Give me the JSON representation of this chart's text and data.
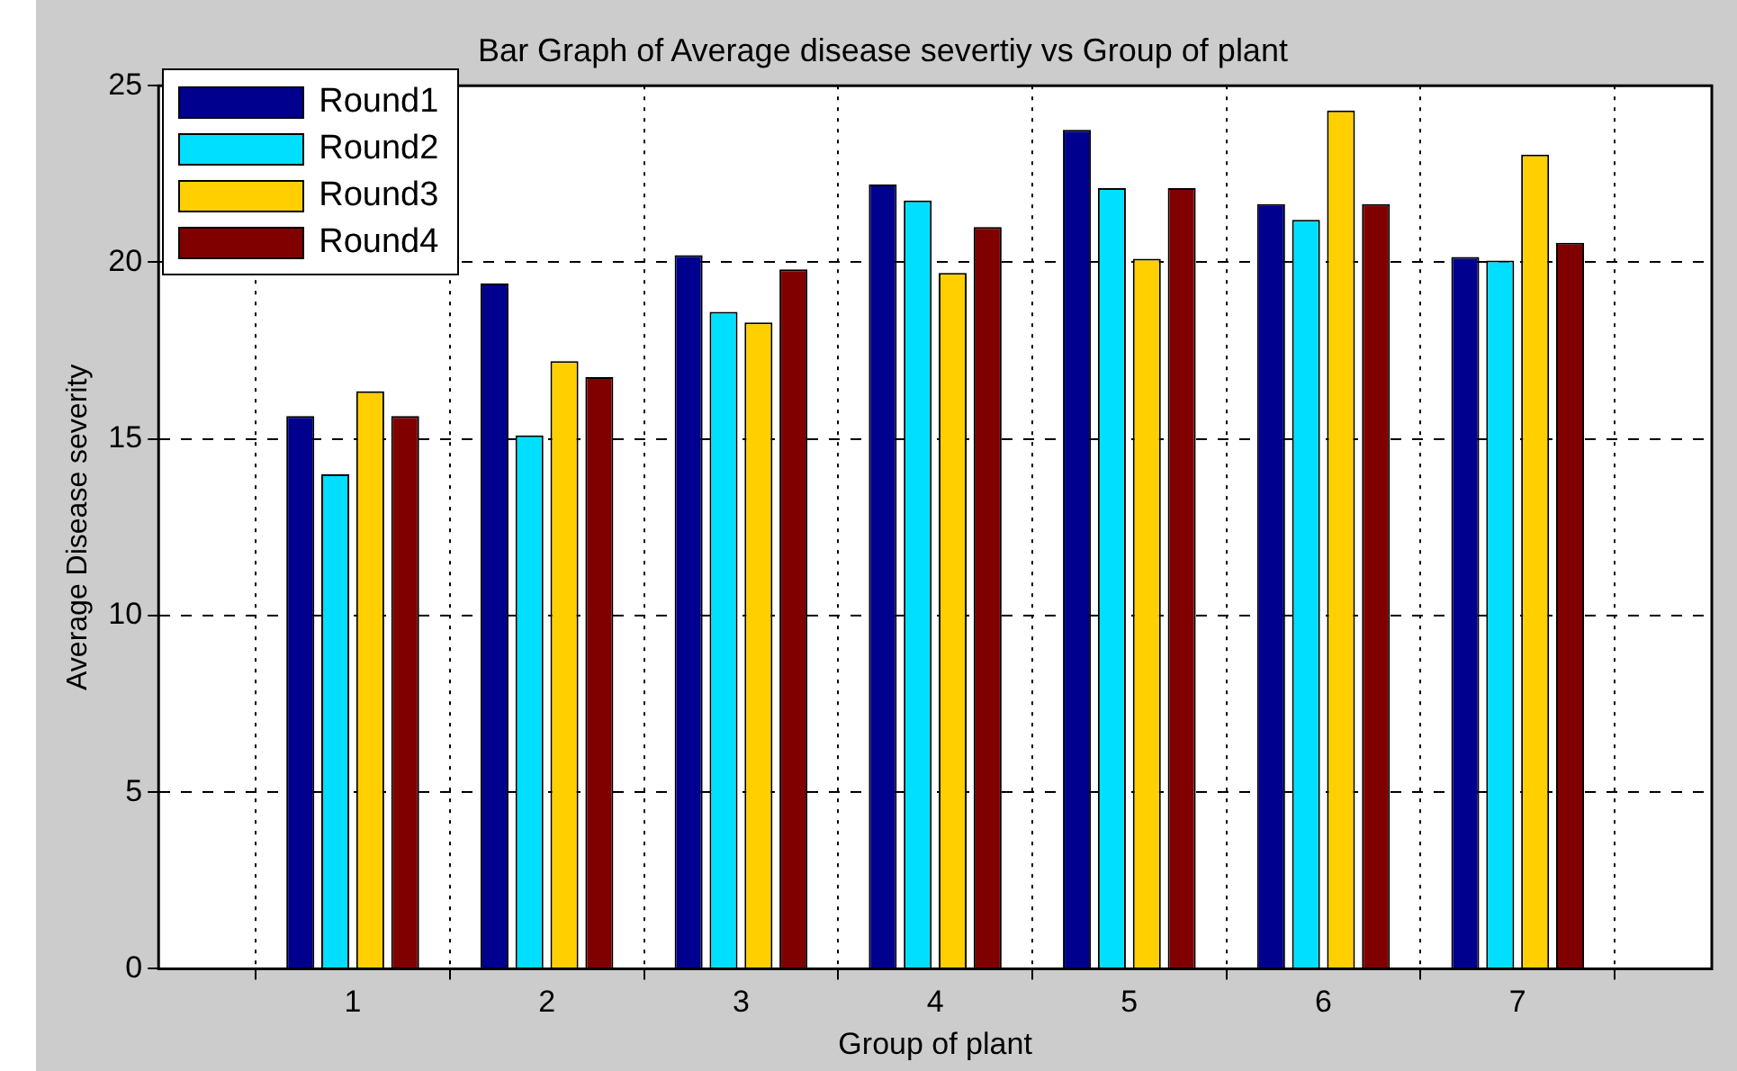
{
  "chart_data": {
    "type": "bar",
    "title": "Bar Graph of Average disease severtiy vs Group of plant",
    "xlabel": "Group of plant",
    "ylabel": "Average Disease severity",
    "x": [
      1,
      2,
      3,
      4,
      5,
      6,
      7
    ],
    "xlim": [
      0,
      8
    ],
    "xticks": [
      1,
      2,
      3,
      4,
      5,
      6,
      7
    ],
    "ylim": [
      0,
      25
    ],
    "yticks": [
      0,
      5,
      10,
      15,
      20,
      25
    ],
    "series": [
      {
        "name": "Round1",
        "color": "#00008f",
        "values": [
          15.65,
          19.4,
          20.2,
          22.2,
          23.75,
          21.65,
          20.15
        ]
      },
      {
        "name": "Round2",
        "color": "#00dfff",
        "values": [
          14.0,
          15.1,
          18.6,
          21.75,
          22.1,
          21.2,
          20.05
        ]
      },
      {
        "name": "Round3",
        "color": "#ffcf00",
        "values": [
          16.35,
          17.2,
          18.3,
          19.7,
          20.1,
          24.3,
          23.05
        ]
      },
      {
        "name": "Round4",
        "color": "#800000",
        "values": [
          15.65,
          16.75,
          19.8,
          21.0,
          22.1,
          21.65,
          20.55
        ]
      }
    ],
    "grid": true,
    "legend": "top left"
  }
}
